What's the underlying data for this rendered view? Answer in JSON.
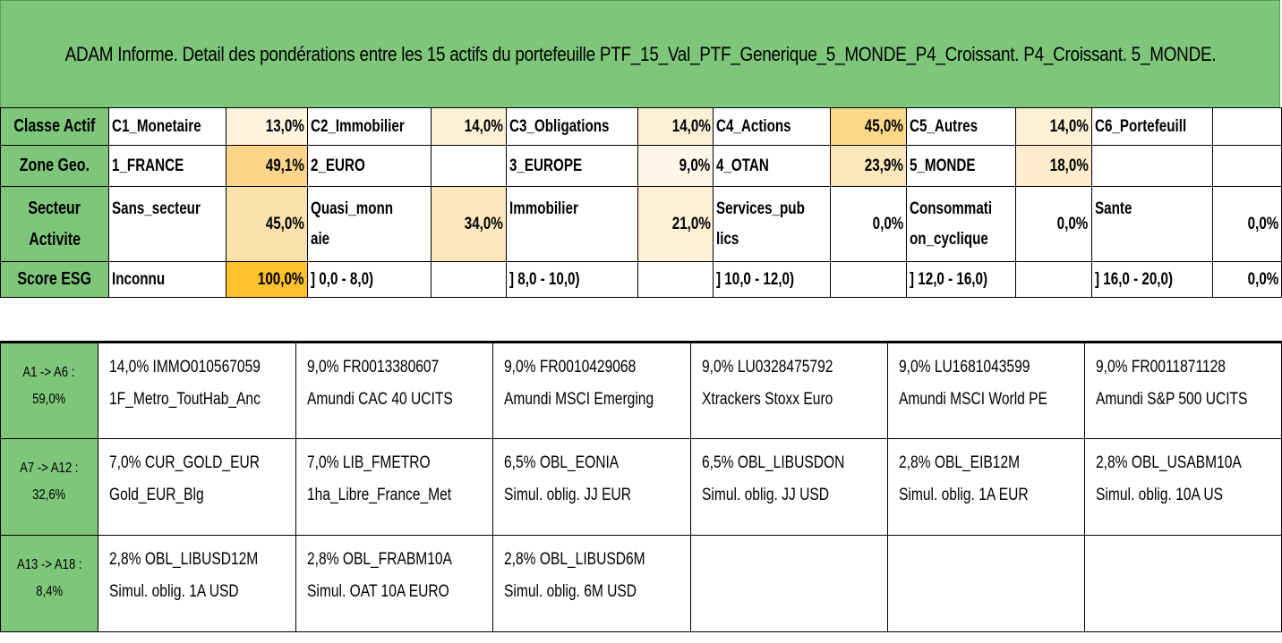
{
  "title": "ADAM Informe. Detail des pondérations entre les 15 actifs du portefeuille PTF_15_Val_PTF_Generique_5_MONDE_P4_Croissant. P4_Croissant. 5_MONDE.",
  "classe_actif": {
    "label": "Classe Actif",
    "cells": [
      {
        "name": "C1_Monetaire",
        "pct": "13,0%",
        "color": "#fdf3df"
      },
      {
        "name": "C2_Immobilier",
        "pct": "14,0%",
        "color": "#fdf0d5"
      },
      {
        "name": "C3_Obligations",
        "pct": "14,0%",
        "color": "#fdf0d5"
      },
      {
        "name": "C4_Actions",
        "pct": "45,0%",
        "color": "#fbd98a"
      },
      {
        "name": "C5_Autres",
        "pct": "14,0%",
        "color": "#fdf0d5"
      },
      {
        "name": "C6_Portefeuill",
        "pct": "",
        "color": "#ffffff"
      }
    ]
  },
  "zone_geo": {
    "label": "Zone Geo.",
    "cells": [
      {
        "name": "1_FRANCE",
        "pct": "49,1%",
        "color": "#fbd68a"
      },
      {
        "name": "2_EURO",
        "pct": "",
        "color": "#ffffff"
      },
      {
        "name": "3_EUROPE",
        "pct": "9,0%",
        "color": "#fef6e8"
      },
      {
        "name": "4_OTAN",
        "pct": "23,9%",
        "color": "#fce7bd"
      },
      {
        "name": "5_MONDE",
        "pct": "18,0%",
        "color": "#fdedcc"
      },
      {
        "name": "",
        "pct": "",
        "color": "#ffffff"
      }
    ]
  },
  "secteur": {
    "label_line1": "Secteur",
    "label_line2": "Activite",
    "cells": [
      {
        "line1": "Sans_secteur",
        "line2": "",
        "pct": "45,0%",
        "color": "#fbe2ad"
      },
      {
        "line1": "Quasi_monn",
        "line2": "aie",
        "pct": "34,0%",
        "color": "#fce8be"
      },
      {
        "line1": "Immobilier",
        "line2": "",
        "pct": "21,0%",
        "color": "#fdf0d4"
      },
      {
        "line1": "Services_pub",
        "line2": "lics",
        "pct": "0,0%",
        "color": "#ffffff"
      },
      {
        "line1": "Consommati",
        "line2": "on_cyclique",
        "pct": "0,0%",
        "color": "#ffffff"
      },
      {
        "line1": "Sante",
        "line2": "",
        "pct": "0,0%",
        "color": "#ffffff"
      }
    ]
  },
  "esg": {
    "label": "Score ESG",
    "cells": [
      {
        "name": "Inconnu",
        "pct": "100,0%",
        "color": "#fcc12e"
      },
      {
        "name": "] 0,0 - 8,0)",
        "pct": "",
        "color": "#ffffff"
      },
      {
        "name": "] 8,0 - 10,0)",
        "pct": "",
        "color": "#ffffff"
      },
      {
        "name": "] 10,0 - 12,0)",
        "pct": "",
        "color": "#ffffff"
      },
      {
        "name": "] 12,0 - 16,0)",
        "pct": "",
        "color": "#ffffff"
      },
      {
        "name": "] 16,0 - 20,0)",
        "pct": "0,0%",
        "color": "#ffffff"
      }
    ]
  },
  "groups": [
    {
      "range": "A1 -> A6 :",
      "total": "59,0%",
      "assets": [
        {
          "line1": "14,0% IMMO010567059",
          "line2": "1F_Metro_ToutHab_Anc"
        },
        {
          "line1": "9,0% FR0013380607",
          "line2": "Amundi CAC 40 UCITS"
        },
        {
          "line1": "9,0% FR0010429068",
          "line2": "Amundi MSCI Emerging"
        },
        {
          "line1": "9,0% LU0328475792",
          "line2": "Xtrackers Stoxx Euro"
        },
        {
          "line1": "9,0% LU1681043599",
          "line2": "Amundi MSCI World PE"
        },
        {
          "line1": "9,0% FR0011871128",
          "line2": "Amundi S&P 500 UCITS"
        }
      ]
    },
    {
      "range": "A7 -> A12 :",
      "total": "32,6%",
      "assets": [
        {
          "line1": "7,0% CUR_GOLD_EUR",
          "line2": "Gold_EUR_Blg"
        },
        {
          "line1": "7,0% LIB_FMETRO",
          "line2": "1ha_Libre_France_Met"
        },
        {
          "line1": "6,5% OBL_EONIA",
          "line2": "Simul. oblig. JJ EUR"
        },
        {
          "line1": "6,5% OBL_LIBUSDON",
          "line2": "Simul. oblig. JJ USD"
        },
        {
          "line1": "2,8% OBL_EIB12M",
          "line2": "Simul. oblig. 1A EUR"
        },
        {
          "line1": "2,8% OBL_USABM10A",
          "line2": "Simul. oblig. 10A US"
        }
      ]
    },
    {
      "range": "A13 -> A18 :",
      "total": "8,4%",
      "assets": [
        {
          "line1": "2,8% OBL_LIBUSD12M",
          "line2": "Simul. oblig. 1A USD"
        },
        {
          "line1": "2,8% OBL_FRABM10A",
          "line2": "Simul. OAT 10A EURO"
        },
        {
          "line1": "2,8% OBL_LIBUSD6M",
          "line2": "Simul. oblig. 6M USD"
        },
        {
          "line1": "",
          "line2": ""
        },
        {
          "line1": "",
          "line2": ""
        },
        {
          "line1": "",
          "line2": ""
        }
      ]
    }
  ],
  "colors": {
    "header_green": "#7dc67a"
  }
}
